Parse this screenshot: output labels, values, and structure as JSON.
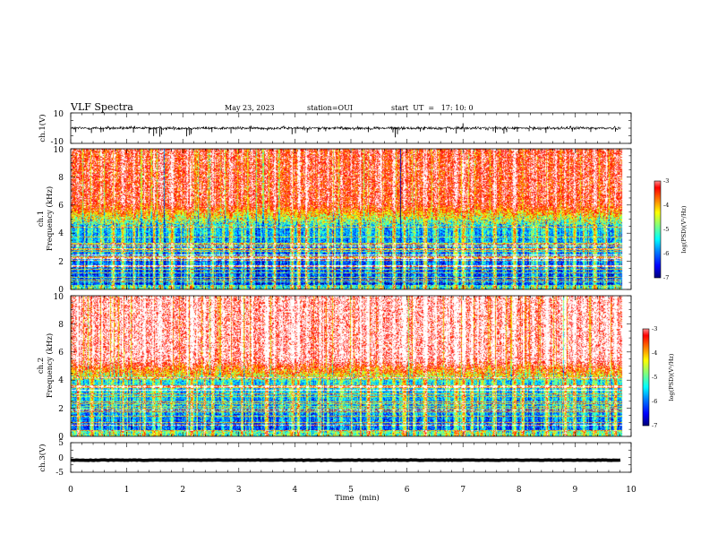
{
  "header": {
    "title": "VLF Spectra",
    "date": "May 23, 2023",
    "station": "station=OUI",
    "start": "start  UT  =   17: 10: 0"
  },
  "chart_data": {
    "type": "heatmap",
    "x_label": "Time  (min)",
    "x_ticks": [
      "0",
      "1",
      "2",
      "3",
      "4",
      "5",
      "6",
      "7",
      "8",
      "9",
      "10"
    ],
    "xlim": [
      0,
      10
    ],
    "data_end_min": 9.82,
    "panels": [
      {
        "id": "ch1-voltage",
        "type": "line",
        "ylabel": "ch.1(V)",
        "yticks": [
          "10",
          "-10"
        ],
        "ylim": [
          -10,
          10
        ],
        "baseline": 0,
        "noise_amplitude": 1.5,
        "spikes": [
          {
            "t": 0.09,
            "v": -2.6
          },
          {
            "t": 0.37,
            "v": -3.2
          },
          {
            "t": 0.54,
            "v": -2.7
          },
          {
            "t": 0.58,
            "v": -2.2
          },
          {
            "t": 1.12,
            "v": -2.9
          },
          {
            "t": 1.4,
            "v": -3.4
          },
          {
            "t": 1.48,
            "v": -5.2
          },
          {
            "t": 1.53,
            "v": -3.5
          },
          {
            "t": 1.59,
            "v": -5.6
          },
          {
            "t": 1.62,
            "v": -4.2
          },
          {
            "t": 2.07,
            "v": -5.4
          },
          {
            "t": 2.12,
            "v": -4.6
          },
          {
            "t": 2.15,
            "v": -3.8
          },
          {
            "t": 2.52,
            "v": -2.6
          },
          {
            "t": 2.86,
            "v": -3.4
          },
          {
            "t": 3.2,
            "v": -2.2
          },
          {
            "t": 3.95,
            "v": -4.0
          },
          {
            "t": 4.01,
            "v": -3.4
          },
          {
            "t": 4.22,
            "v": -2.9
          },
          {
            "t": 4.42,
            "v": -2.4
          },
          {
            "t": 4.55,
            "v": -2.0
          },
          {
            "t": 5.31,
            "v": -2.6
          },
          {
            "t": 5.75,
            "v": -2.8
          },
          {
            "t": 5.79,
            "v": -6.0
          },
          {
            "t": 5.83,
            "v": -4.0
          },
          {
            "t": 6.24,
            "v": -2.2
          },
          {
            "t": 6.7,
            "v": -2.9
          },
          {
            "t": 6.88,
            "v": -3.5
          },
          {
            "t": 7.0,
            "v": 3.2
          },
          {
            "t": 7.02,
            "v": -2.4
          },
          {
            "t": 7.54,
            "v": -2.0
          },
          {
            "t": 7.58,
            "v": -3.0
          },
          {
            "t": 7.73,
            "v": -3.6
          },
          {
            "t": 7.78,
            "v": -2.6
          },
          {
            "t": 7.97,
            "v": -2.4
          },
          {
            "t": 8.18,
            "v": -2.0
          },
          {
            "t": 8.48,
            "v": -3.1
          },
          {
            "t": 8.95,
            "v": -2.2
          },
          {
            "t": 9.28,
            "v": -2.5
          },
          {
            "t": 9.72,
            "v": -2.3
          }
        ]
      },
      {
        "id": "ch1-spectrogram",
        "type": "heatmap",
        "ylabel_top": "ch.1",
        "ylabel": "Frequency  (kHz)",
        "yticks": [
          "0",
          "2",
          "4",
          "6",
          "8",
          "10"
        ],
        "ylim": [
          0,
          10
        ],
        "colorbar": {
          "label": "log(PSD)(V²/Hz)",
          "ticks": [
            "-3",
            "-4",
            "-5",
            "-6",
            "-7"
          ],
          "range": [
            -7,
            -3
          ]
        },
        "psd_profile_top_khz": 10,
        "noise_floor": -6.6,
        "upper_level": -3.6,
        "transition_khz": 4.6,
        "sferic_times": [
          0.12,
          0.37,
          0.55,
          0.75,
          0.92,
          1.12,
          1.31,
          1.48,
          1.59,
          1.8,
          2.07,
          2.15,
          2.38,
          2.52,
          2.71,
          2.86,
          3.05,
          3.22,
          3.48,
          3.62,
          3.95,
          4.06,
          4.22,
          4.42,
          4.58,
          4.82,
          5.0,
          5.16,
          5.31,
          5.52,
          5.76,
          5.95,
          6.12,
          6.32,
          6.5,
          6.7,
          6.87,
          7.0,
          7.16,
          7.35,
          7.55,
          7.73,
          7.9,
          8.07,
          8.25,
          8.48,
          8.65,
          8.82,
          8.98,
          9.15,
          9.34,
          9.55,
          9.72
        ]
      },
      {
        "id": "ch2-spectrogram",
        "type": "heatmap",
        "ylabel_top": "ch.2",
        "ylabel": "Frequency  (kHz)",
        "yticks": [
          "0",
          "2",
          "4",
          "6",
          "8",
          "10"
        ],
        "ylim": [
          0,
          10
        ],
        "colorbar": {
          "label": "log(PSD)(V²/Hz)",
          "ticks": [
            "-3",
            "-4",
            "-5",
            "-6",
            "-7"
          ],
          "range": [
            -7,
            -3
          ]
        },
        "noise_floor": -6.4,
        "upper_level": -3.2,
        "transition_khz": 4.0,
        "sferic_times": [
          0.12,
          0.37,
          0.55,
          0.75,
          0.92,
          1.12,
          1.31,
          1.48,
          1.59,
          1.8,
          2.07,
          2.15,
          2.38,
          2.52,
          2.71,
          2.86,
          3.05,
          3.22,
          3.48,
          3.62,
          3.95,
          4.06,
          4.22,
          4.42,
          4.58,
          4.82,
          5.0,
          5.16,
          5.31,
          5.52,
          5.76,
          5.95,
          6.12,
          6.32,
          6.5,
          6.7,
          6.87,
          7.0,
          7.16,
          7.35,
          7.55,
          7.73,
          7.9,
          8.07,
          8.25,
          8.48,
          8.65,
          8.82,
          8.98,
          9.15,
          9.34,
          9.55,
          9.72
        ]
      },
      {
        "id": "ch3-voltage",
        "type": "line",
        "ylabel": "ch.3(V)",
        "yticks": [
          "5",
          "0",
          "-5"
        ],
        "ylim": [
          -5,
          5
        ],
        "baseline": -0.9,
        "noise_amplitude": 0.25
      }
    ],
    "colors": {
      "colormap": [
        "#00007f",
        "#0000ff",
        "#007fff",
        "#00ffff",
        "#7fff7f",
        "#ffff00",
        "#ff7f00",
        "#ff0000",
        "#ff9999",
        "#ffffff"
      ]
    }
  }
}
